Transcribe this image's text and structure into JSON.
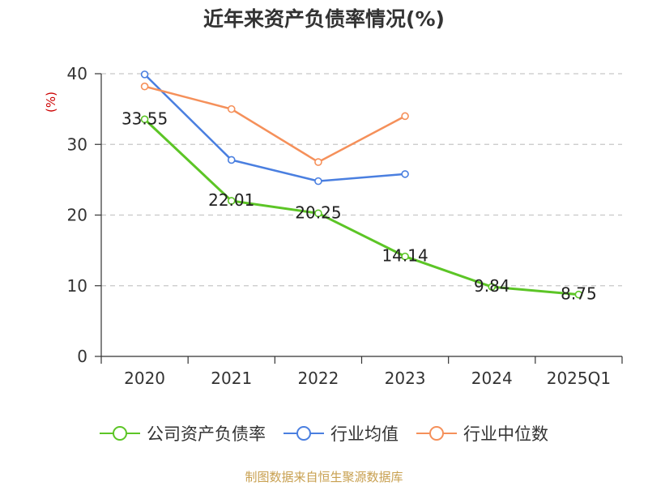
{
  "title": "近年来资产负债率情况(%)",
  "source": "制图数据来自恒生聚源数据库",
  "colors": {
    "company": "#5cc526",
    "industry_avg": "#4a7fe0",
    "industry_median": "#f5905a"
  },
  "chart_data": {
    "type": "line",
    "title": "近年来资产负债率情况(%)",
    "ylabel": "(%)",
    "xlabel": "",
    "categories": [
      "2020",
      "2021",
      "2022",
      "2023",
      "2024",
      "2025Q1"
    ],
    "ylim": [
      0,
      40
    ],
    "yticks": [
      0,
      10,
      20,
      30,
      40
    ],
    "grid": true,
    "legend": "bottom",
    "series": [
      {
        "name": "公司资产负债率",
        "color": "#5cc526",
        "values": [
          33.55,
          22.01,
          20.25,
          14.14,
          9.84,
          8.75
        ],
        "labels": [
          "33.55",
          "22.01",
          "20.25",
          "14.14",
          "9.84",
          "8.75"
        ]
      },
      {
        "name": "行业均值",
        "color": "#4a7fe0",
        "values": [
          39.9,
          27.8,
          24.8,
          25.8,
          null,
          null
        ]
      },
      {
        "name": "行业中位数",
        "color": "#f5905a",
        "values": [
          38.2,
          35.0,
          27.5,
          34.0,
          null,
          null
        ]
      }
    ]
  }
}
